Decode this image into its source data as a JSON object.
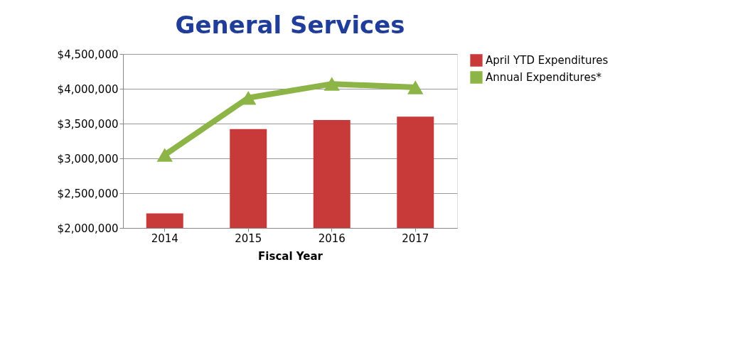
{
  "chart_data": {
    "type": "bar",
    "title": "General Services",
    "xlabel": "Fiscal Year",
    "categories": [
      "2014",
      "2015",
      "2016",
      "2017"
    ],
    "series": [
      {
        "name": "April YTD Expenditures",
        "color": "#c83a3a",
        "values": [
          2210000,
          3420000,
          3550000,
          3600000
        ]
      },
      {
        "name": "Annual Expenditures*",
        "type": "line",
        "color": "#8db446",
        "marker": "triangle",
        "values": [
          3050000,
          3870000,
          4070000,
          4020000
        ]
      }
    ],
    "ylim": [
      2000000,
      4500000
    ],
    "yticks": [
      {
        "value": 2000000,
        "label": "$2,000,000"
      },
      {
        "value": 2500000,
        "label": "$2,500,000"
      },
      {
        "value": 3000000,
        "label": "$3,000,000"
      },
      {
        "value": 3500000,
        "label": "$3,500,000"
      },
      {
        "value": 4000000,
        "label": "$4,000,000"
      },
      {
        "value": 4500000,
        "label": "$4,500,000"
      }
    ],
    "grid": "y",
    "legend": "right"
  }
}
